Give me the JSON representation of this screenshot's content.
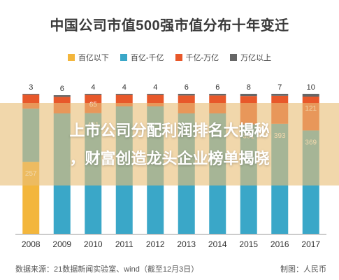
{
  "chart_data": {
    "type": "bar",
    "stacked": true,
    "title": "中国公司市值500强市值分布十年变迁",
    "categories": [
      "2008",
      "2009",
      "2010",
      "2011",
      "2012",
      "2013",
      "2014",
      "2015",
      "2016",
      "2017"
    ],
    "series": [
      {
        "name": "百亿以下",
        "color": "#f3b63c",
        "values": [
          257,
          0,
          0,
          0,
          0,
          0,
          0,
          0,
          0,
          0
        ],
        "labels": [
          "257",
          "",
          "",
          "",
          "",
          "",
          "",
          "",
          "",
          ""
        ]
      },
      {
        "name": "百亿-千亿",
        "color": "#3aa7c8",
        "values": [
          190,
          430,
          431,
          455,
          455,
          430,
          430,
          391,
          393,
          369
        ],
        "labels": [
          "",
          "",
          "431",
          "",
          "",
          "",
          "",
          "391",
          "393",
          "369"
        ]
      },
      {
        "name": "千亿-万亿",
        "color": "#e8582a",
        "values": [
          50,
          59,
          65,
          41,
          41,
          64,
          64,
          101,
          100,
          121
        ],
        "labels": [
          "",
          "",
          "65",
          "",
          "",
          "",
          "",
          "",
          "",
          "121"
        ]
      },
      {
        "name": "万亿以上",
        "color": "#666666",
        "values": [
          3,
          6,
          4,
          4,
          4,
          6,
          6,
          8,
          7,
          10
        ],
        "labels": [
          "3",
          "6",
          "4",
          "4",
          "4",
          "6",
          "6",
          "8",
          "7",
          "10"
        ]
      }
    ],
    "ylim": [
      0,
      500
    ],
    "grid": false,
    "legend": "top"
  },
  "overlay": {
    "line1": "上市公司分配利润排名大揭秘",
    "line2": "，财富创造龙头企业榜单揭晓"
  },
  "footer": {
    "source": "数据来源：21数据新闻实验室、wind（截至12月3日）",
    "credit": "制图：人民币"
  }
}
